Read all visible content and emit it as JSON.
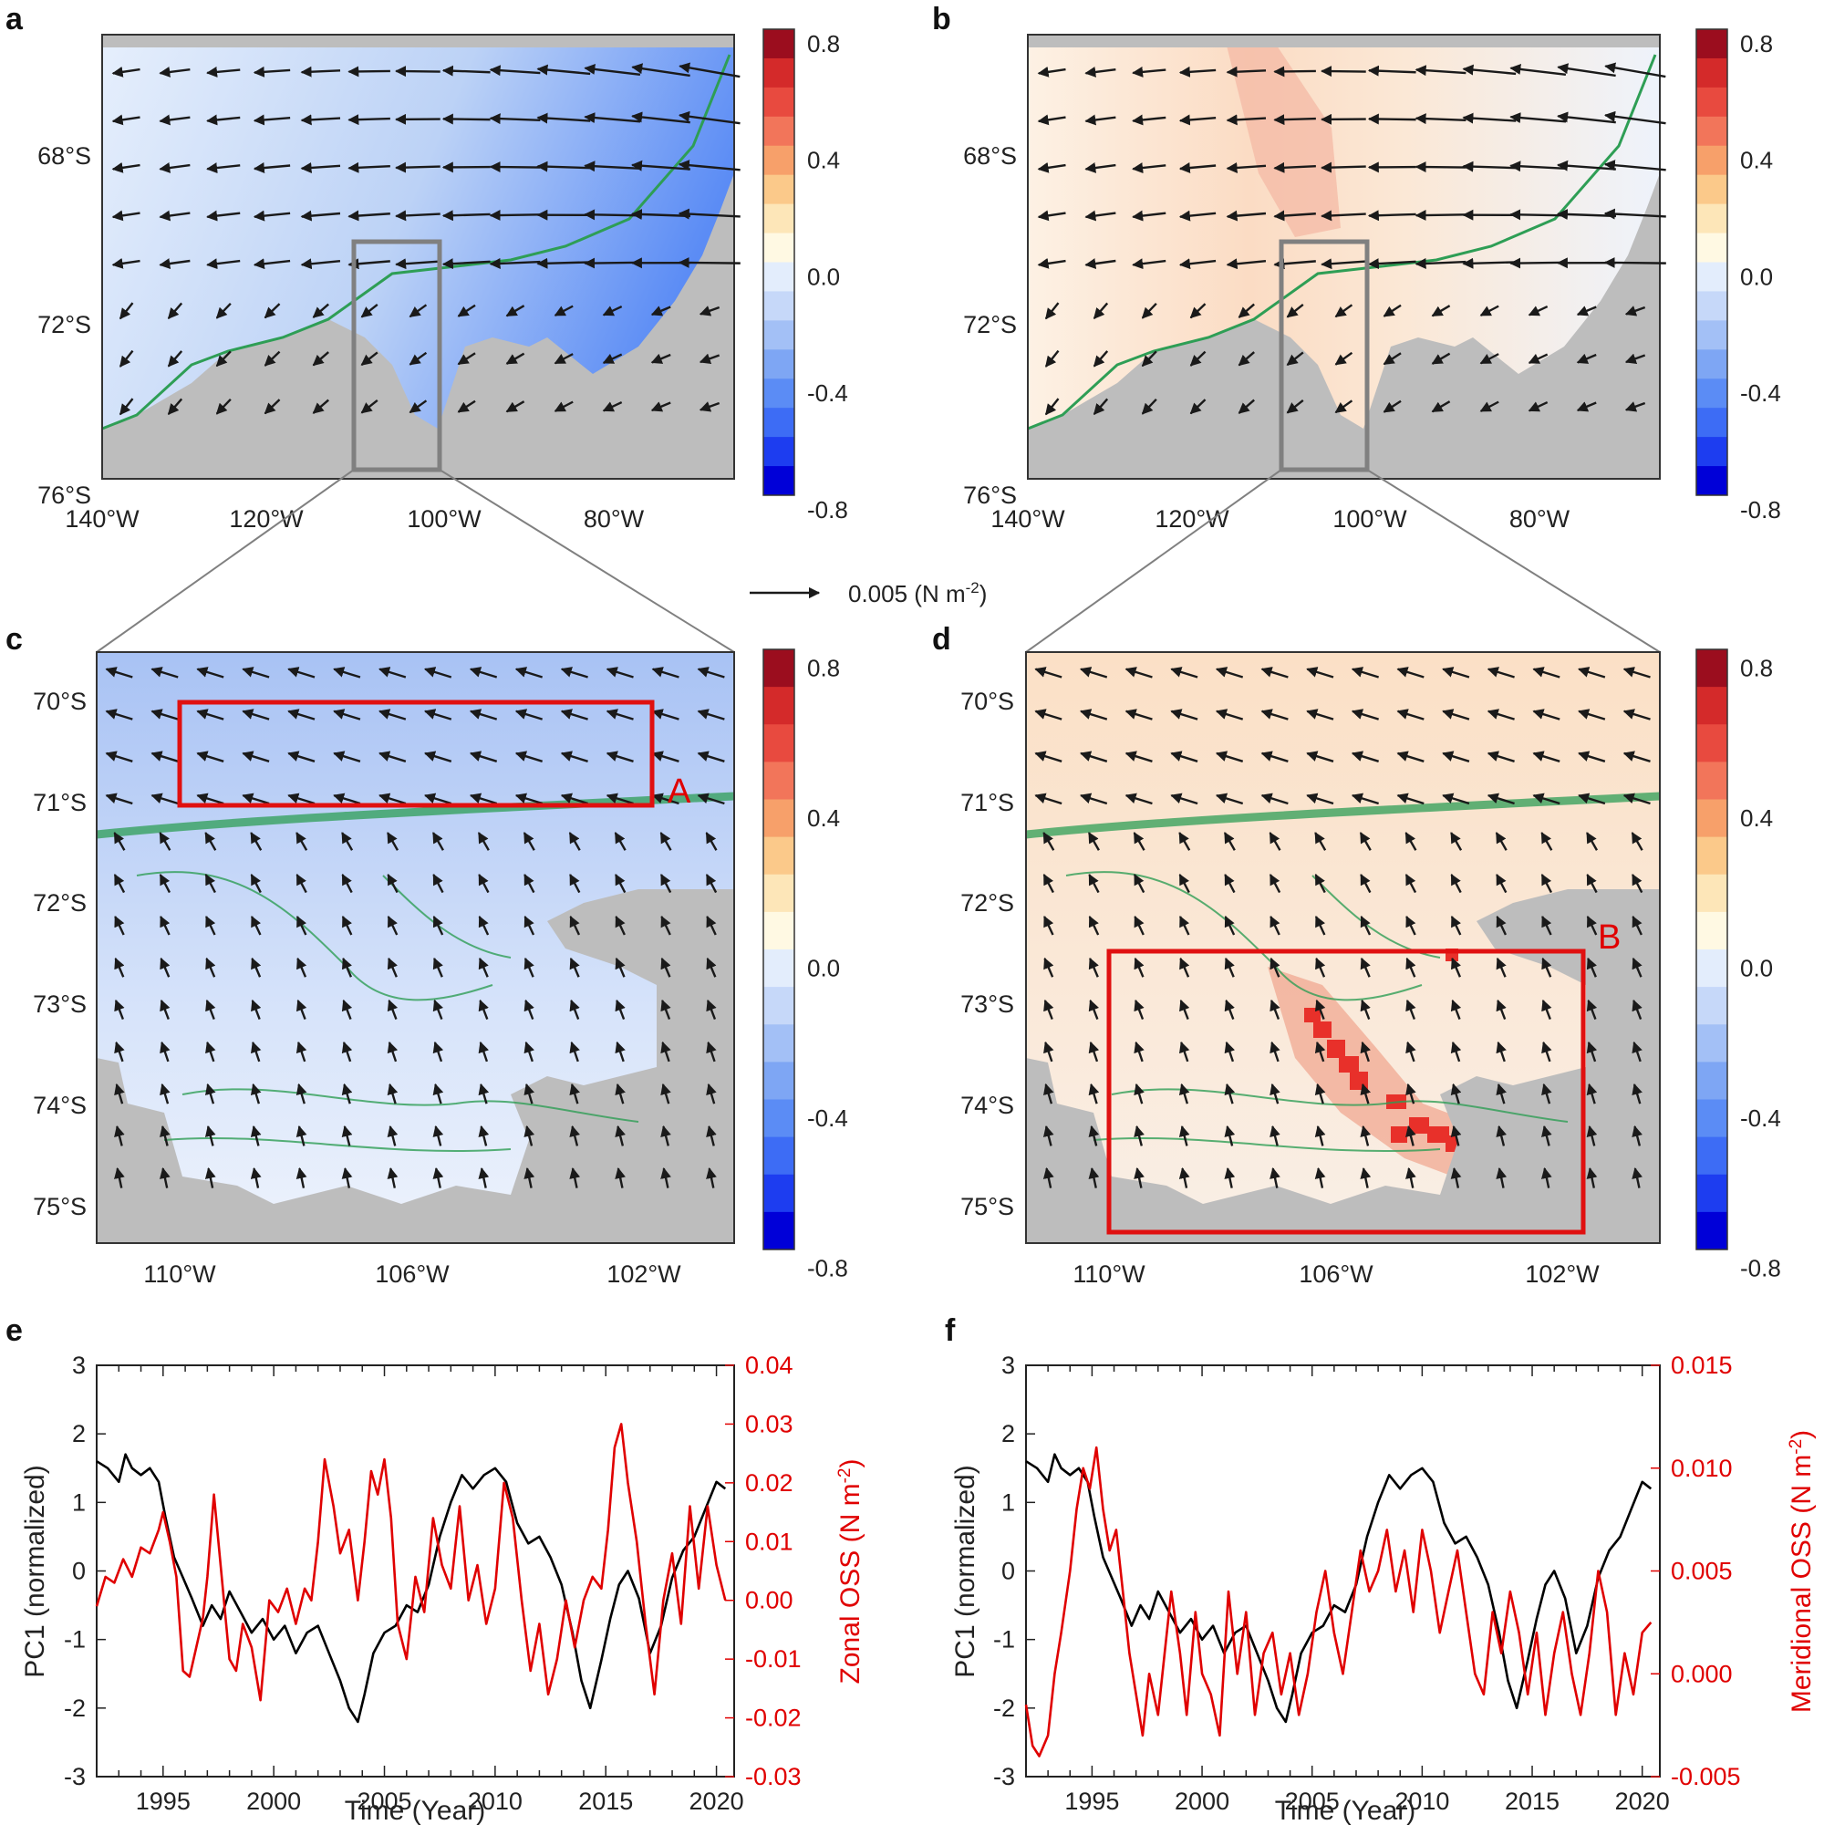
{
  "panels": {
    "a": {
      "letter": "a"
    },
    "b": {
      "letter": "b"
    },
    "c": {
      "letter": "c",
      "box_label": "A"
    },
    "d": {
      "letter": "d",
      "box_label": "B"
    },
    "e": {
      "letter": "e"
    },
    "f": {
      "letter": "f"
    }
  },
  "colors": {
    "land": "#bdbdbd",
    "arrow": "#1a1a1a",
    "contour": "#2e9e55",
    "box_gray": "#808080",
    "box_red": "#e01010",
    "pc1_line": "#000000",
    "oss_line": "#e00000",
    "colorbar": [
      "#0000d8",
      "#1d3df0",
      "#3d6cf5",
      "#5b8cf5",
      "#7ea6f4",
      "#a3c0f6",
      "#c6d8f9",
      "#e3edfc",
      "#fff9e3",
      "#fde6b8",
      "#fbc98a",
      "#f7a06a",
      "#f2755a",
      "#e84a3f",
      "#d42a2a",
      "#9b0d1e"
    ]
  },
  "colorbar": {
    "ticks": [
      "0.8",
      "0.4",
      "0.0",
      "-0.4",
      "-0.8"
    ]
  },
  "map_top": {
    "lat_labels": [
      "68°S",
      "72°S",
      "76°S"
    ],
    "lon_labels": [
      "140°W",
      "120°W",
      "100°W",
      "80°W"
    ]
  },
  "map_zoom": {
    "lat_labels": [
      "70°S",
      "71°S",
      "72°S",
      "73°S",
      "74°S",
      "75°S"
    ],
    "lon_labels": [
      "110°W",
      "106°W",
      "102°W"
    ]
  },
  "reference_vector": {
    "label": "0.005 (N m",
    "superscript": "-2",
    "close": ")"
  },
  "chart_data": [
    {
      "panel": "e",
      "type": "line",
      "xlabel": "Time (Year)",
      "ylabel": "PC1 (normalized)",
      "y2label": "Zonal OSS (N m",
      "y2label_sup": "-2",
      "y2label_close": ")",
      "xlim": [
        1992,
        2020.8
      ],
      "ylim": [
        -3,
        3
      ],
      "y2lim": [
        -0.03,
        0.04
      ],
      "x_ticks": [
        "1995",
        "2000",
        "2005",
        "2010",
        "2015",
        "2020"
      ],
      "y_ticks": [
        "3",
        "2",
        "1",
        "0",
        "-1",
        "-2",
        "-3"
      ],
      "y2_ticks": [
        "0.04",
        "0.03",
        "0.02",
        "0.01",
        "0.00",
        "-0.01",
        "-0.02",
        "-0.03"
      ],
      "series": [
        {
          "axis": "left",
          "x": [
            1992.0,
            1992.5,
            1993.0,
            1993.3,
            1993.6,
            1994.0,
            1994.4,
            1994.8,
            1995.1,
            1995.5,
            1995.9,
            1996.3,
            1996.8,
            1997.2,
            1997.6,
            1998.0,
            1998.5,
            1999.0,
            1999.5,
            2000.0,
            2000.5,
            2001.0,
            2001.5,
            2002.0,
            2002.5,
            2003.0,
            2003.4,
            2003.8,
            2004.1,
            2004.5,
            2005.0,
            2005.5,
            2006.0,
            2006.5,
            2007.0,
            2007.5,
            2008.0,
            2008.5,
            2009.0,
            2009.5,
            2010.0,
            2010.5,
            2011.0,
            2011.5,
            2012.0,
            2012.5,
            2013.0,
            2013.5,
            2013.9,
            2014.3,
            2014.8,
            2015.2,
            2015.6,
            2016.0,
            2016.5,
            2017.0,
            2017.5,
            2018.0,
            2018.5,
            2019.0,
            2019.5,
            2020.0,
            2020.4
          ],
          "y": [
            1.6,
            1.5,
            1.3,
            1.7,
            1.5,
            1.4,
            1.5,
            1.3,
            0.8,
            0.2,
            -0.1,
            -0.4,
            -0.8,
            -0.5,
            -0.7,
            -0.3,
            -0.6,
            -0.9,
            -0.7,
            -1.0,
            -0.8,
            -1.2,
            -0.9,
            -0.8,
            -1.2,
            -1.6,
            -2.0,
            -2.2,
            -1.8,
            -1.2,
            -0.9,
            -0.8,
            -0.5,
            -0.6,
            -0.2,
            0.5,
            1.0,
            1.4,
            1.2,
            1.4,
            1.5,
            1.3,
            0.7,
            0.4,
            0.5,
            0.2,
            -0.2,
            -0.9,
            -1.6,
            -2.0,
            -1.3,
            -0.7,
            -0.2,
            0.0,
            -0.4,
            -1.2,
            -0.8,
            -0.1,
            0.3,
            0.5,
            0.9,
            1.3,
            1.2
          ]
        },
        {
          "axis": "right",
          "x": [
            1992.0,
            1992.4,
            1992.8,
            1993.2,
            1993.6,
            1994.0,
            1994.4,
            1994.8,
            1995.0,
            1995.3,
            1995.6,
            1995.9,
            1996.2,
            1996.5,
            1996.8,
            1997.0,
            1997.3,
            1997.6,
            1998.0,
            1998.3,
            1998.6,
            1999.0,
            1999.4,
            1999.8,
            2000.2,
            2000.6,
            2001.0,
            2001.4,
            2001.7,
            2002.0,
            2002.3,
            2002.7,
            2003.0,
            2003.4,
            2003.8,
            2004.1,
            2004.4,
            2004.7,
            2005.0,
            2005.3,
            2005.6,
            2006.0,
            2006.4,
            2006.8,
            2007.2,
            2007.6,
            2008.0,
            2008.4,
            2008.8,
            2009.2,
            2009.6,
            2010.0,
            2010.4,
            2010.8,
            2011.2,
            2011.6,
            2012.0,
            2012.4,
            2012.8,
            2013.2,
            2013.6,
            2014.0,
            2014.4,
            2014.8,
            2015.1,
            2015.4,
            2015.7,
            2016.0,
            2016.4,
            2016.8,
            2017.2,
            2017.6,
            2018.0,
            2018.4,
            2018.8,
            2019.2,
            2019.6,
            2020.0,
            2020.4
          ],
          "y": [
            -0.001,
            0.004,
            0.003,
            0.007,
            0.004,
            0.009,
            0.008,
            0.012,
            0.015,
            0.01,
            0.004,
            -0.012,
            -0.013,
            -0.008,
            -0.003,
            0.004,
            0.018,
            0.006,
            -0.01,
            -0.012,
            -0.004,
            -0.008,
            -0.017,
            0.0,
            -0.002,
            0.002,
            -0.004,
            0.002,
            0.0,
            0.01,
            0.024,
            0.016,
            0.008,
            0.012,
            0.0,
            0.01,
            0.022,
            0.018,
            0.024,
            0.014,
            -0.004,
            -0.01,
            0.004,
            -0.002,
            0.014,
            0.006,
            0.002,
            0.016,
            0.0,
            0.006,
            -0.004,
            0.002,
            0.02,
            0.014,
            0.0,
            -0.012,
            -0.004,
            -0.016,
            -0.01,
            0.0,
            -0.008,
            0.0,
            0.004,
            0.002,
            0.012,
            0.026,
            0.03,
            0.02,
            0.01,
            -0.004,
            -0.016,
            0.0,
            0.008,
            -0.004,
            0.016,
            0.002,
            0.016,
            0.006,
            0.0
          ]
        }
      ]
    },
    {
      "panel": "f",
      "type": "line",
      "xlabel": "Time (Year)",
      "ylabel": "PC1 (normalized)",
      "y2label": "Meridional OSS (N m",
      "y2label_sup": "-2",
      "y2label_close": ")",
      "xlim": [
        1992,
        2020.8
      ],
      "ylim": [
        -3,
        3
      ],
      "y2lim": [
        -0.005,
        0.015
      ],
      "x_ticks": [
        "1995",
        "2000",
        "2005",
        "2010",
        "2015",
        "2020"
      ],
      "y_ticks": [
        "3",
        "2",
        "1",
        "0",
        "-1",
        "-2",
        "-3"
      ],
      "y2_ticks": [
        "0.015",
        "0.010",
        "0.005",
        "0.000",
        "-0.005"
      ],
      "series": [
        {
          "axis": "left",
          "x": [
            1992.0,
            1992.5,
            1993.0,
            1993.3,
            1993.6,
            1994.0,
            1994.4,
            1994.8,
            1995.1,
            1995.5,
            1995.9,
            1996.3,
            1996.8,
            1997.2,
            1997.6,
            1998.0,
            1998.5,
            1999.0,
            1999.5,
            2000.0,
            2000.5,
            2001.0,
            2001.5,
            2002.0,
            2002.5,
            2003.0,
            2003.4,
            2003.8,
            2004.1,
            2004.5,
            2005.0,
            2005.5,
            2006.0,
            2006.5,
            2007.0,
            2007.5,
            2008.0,
            2008.5,
            2009.0,
            2009.5,
            2010.0,
            2010.5,
            2011.0,
            2011.5,
            2012.0,
            2012.5,
            2013.0,
            2013.5,
            2013.9,
            2014.3,
            2014.8,
            2015.2,
            2015.6,
            2016.0,
            2016.5,
            2017.0,
            2017.5,
            2018.0,
            2018.5,
            2019.0,
            2019.5,
            2020.0,
            2020.4
          ],
          "y": [
            1.6,
            1.5,
            1.3,
            1.7,
            1.5,
            1.4,
            1.5,
            1.3,
            0.8,
            0.2,
            -0.1,
            -0.4,
            -0.8,
            -0.5,
            -0.7,
            -0.3,
            -0.6,
            -0.9,
            -0.7,
            -1.0,
            -0.8,
            -1.2,
            -0.9,
            -0.8,
            -1.2,
            -1.6,
            -2.0,
            -2.2,
            -1.8,
            -1.2,
            -0.9,
            -0.8,
            -0.5,
            -0.6,
            -0.2,
            0.5,
            1.0,
            1.4,
            1.2,
            1.4,
            1.5,
            1.3,
            0.7,
            0.4,
            0.5,
            0.2,
            -0.2,
            -0.9,
            -1.6,
            -2.0,
            -1.3,
            -0.7,
            -0.2,
            0.0,
            -0.4,
            -1.2,
            -0.8,
            -0.1,
            0.3,
            0.5,
            0.9,
            1.3,
            1.2
          ]
        },
        {
          "axis": "right",
          "x": [
            1992.0,
            1992.3,
            1992.6,
            1993.0,
            1993.3,
            1993.6,
            1994.0,
            1994.3,
            1994.6,
            1994.9,
            1995.2,
            1995.5,
            1995.8,
            1996.1,
            1996.4,
            1996.7,
            1997.0,
            1997.3,
            1997.6,
            1998.0,
            1998.3,
            1998.6,
            1999.0,
            1999.3,
            1999.7,
            2000.0,
            2000.4,
            2000.8,
            2001.2,
            2001.6,
            2002.0,
            2002.4,
            2002.8,
            2003.2,
            2003.6,
            2004.0,
            2004.4,
            2004.8,
            2005.2,
            2005.6,
            2006.0,
            2006.4,
            2006.8,
            2007.2,
            2007.6,
            2008.0,
            2008.4,
            2008.8,
            2009.2,
            2009.6,
            2010.0,
            2010.4,
            2010.8,
            2011.2,
            2011.6,
            2012.0,
            2012.4,
            2012.8,
            2013.2,
            2013.6,
            2014.0,
            2014.4,
            2014.8,
            2015.2,
            2015.6,
            2016.0,
            2016.4,
            2016.8,
            2017.2,
            2017.6,
            2018.0,
            2018.4,
            2018.8,
            2019.2,
            2019.6,
            2020.0,
            2020.4
          ],
          "y": [
            -0.0015,
            -0.0035,
            -0.004,
            -0.003,
            0.0,
            0.002,
            0.005,
            0.008,
            0.01,
            0.009,
            0.011,
            0.008,
            0.006,
            0.007,
            0.004,
            0.001,
            -0.001,
            -0.003,
            0.0,
            -0.002,
            0.001,
            0.004,
            0.001,
            -0.002,
            0.003,
            0.0,
            -0.001,
            -0.003,
            0.004,
            0.0,
            0.003,
            -0.002,
            0.001,
            0.002,
            -0.001,
            0.001,
            -0.002,
            0.0,
            0.003,
            0.005,
            0.002,
            0.0,
            0.003,
            0.006,
            0.004,
            0.005,
            0.007,
            0.004,
            0.006,
            0.003,
            0.007,
            0.005,
            0.002,
            0.004,
            0.006,
            0.003,
            0.0,
            -0.001,
            0.003,
            0.001,
            0.004,
            0.002,
            -0.001,
            0.002,
            -0.002,
            0.001,
            0.003,
            0.0,
            -0.002,
            0.001,
            0.005,
            0.003,
            -0.002,
            0.001,
            -0.001,
            0.002,
            0.0025
          ]
        }
      ]
    }
  ]
}
